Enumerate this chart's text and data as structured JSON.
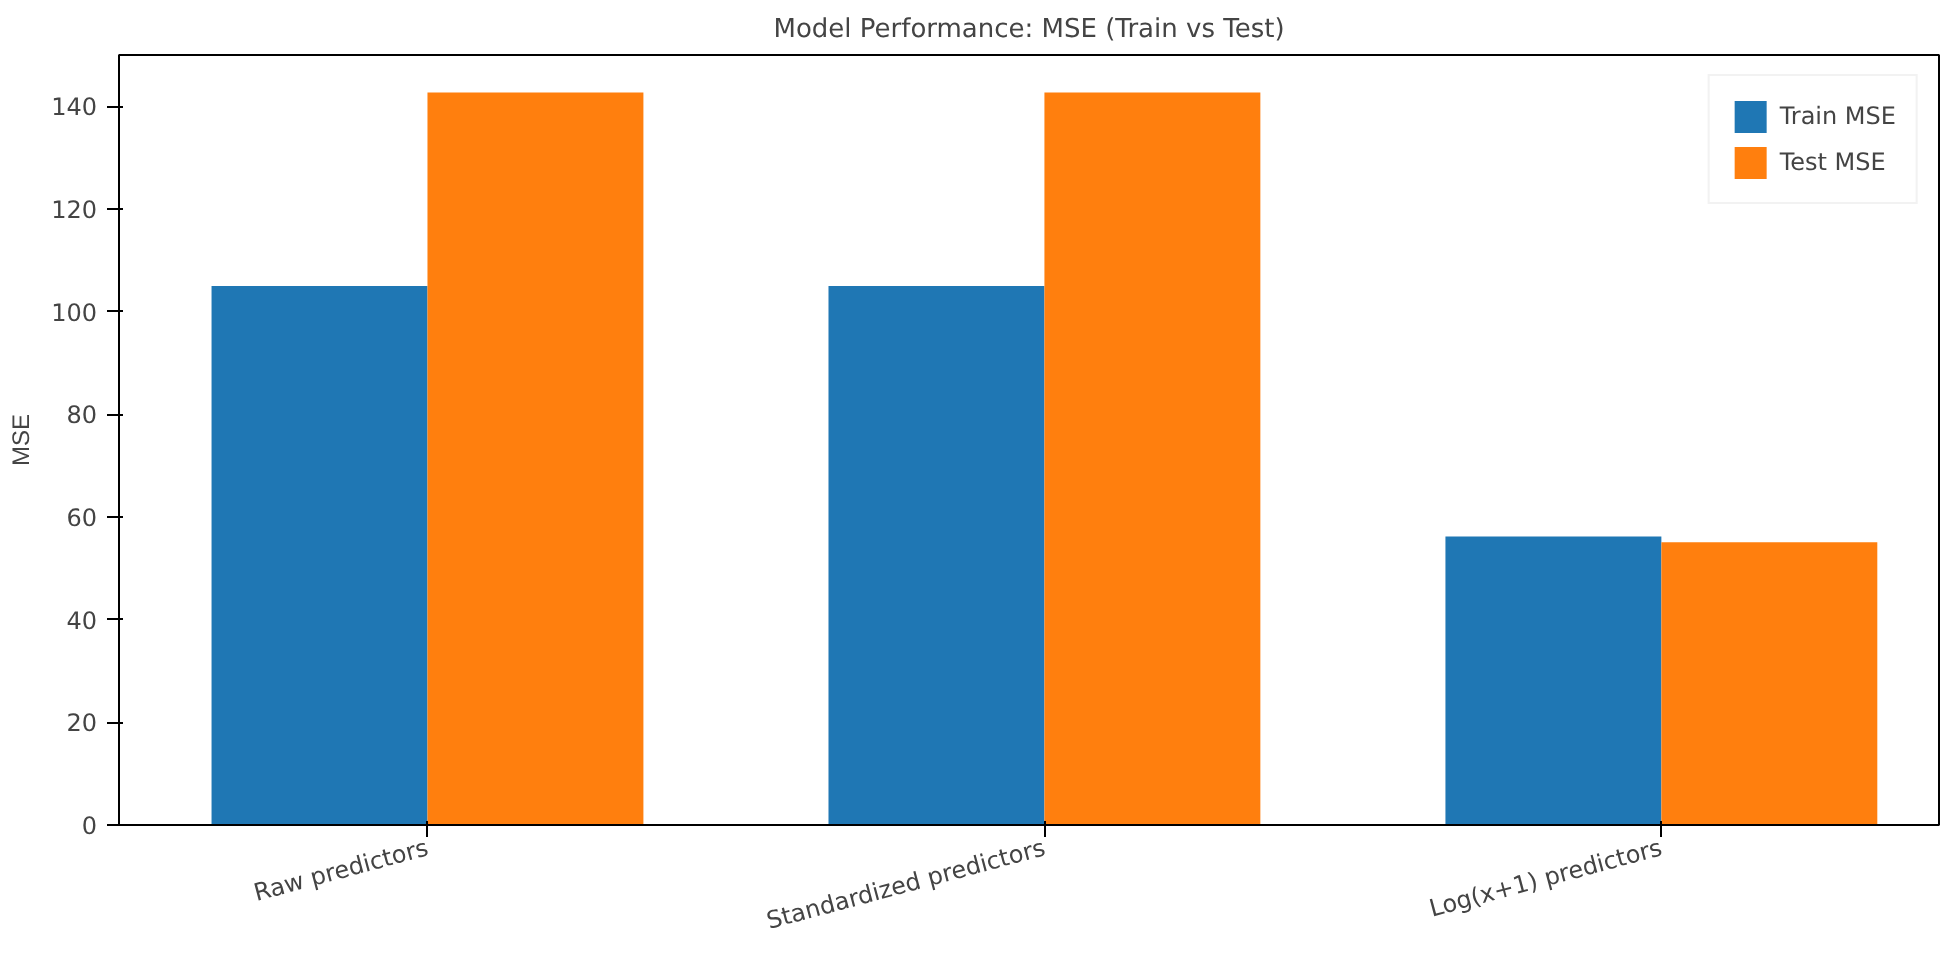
{
  "chart_data": {
    "type": "bar",
    "title": "Model Performance: MSE (Train vs Test)",
    "ylabel": "MSE",
    "categories": [
      "Raw predictors",
      "Standardized predictors",
      "Log(x+1) predictors"
    ],
    "series": [
      {
        "name": "Train MSE",
        "color": "#1f77b4",
        "values": [
          105,
          105,
          56.2
        ]
      },
      {
        "name": "Test MSE",
        "color": "#ff7f0e",
        "values": [
          142.7,
          142.7,
          55.1
        ]
      }
    ],
    "ylim": [
      0,
      150
    ],
    "yticks": [
      0,
      20,
      40,
      60,
      80,
      100,
      120,
      140
    ],
    "grid": false,
    "legend": "top right"
  }
}
